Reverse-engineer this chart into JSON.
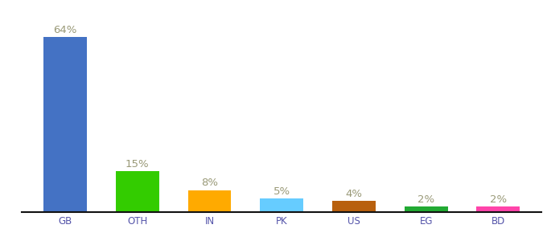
{
  "categories": [
    "GB",
    "OTH",
    "IN",
    "PK",
    "US",
    "EG",
    "BD"
  ],
  "values": [
    64,
    15,
    8,
    5,
    4,
    2,
    2
  ],
  "bar_colors": [
    "#4472c4",
    "#33cc00",
    "#ffaa00",
    "#66ccff",
    "#b8600e",
    "#22aa33",
    "#ff44aa"
  ],
  "labels": [
    "64%",
    "15%",
    "8%",
    "5%",
    "4%",
    "2%",
    "2%"
  ],
  "background_color": "#ffffff",
  "label_color": "#999977",
  "label_fontsize": 9.5,
  "tick_fontsize": 8.5,
  "tick_color": "#5555aa",
  "ylim": [
    0,
    75
  ],
  "bar_width": 0.6,
  "figsize": [
    6.8,
    3.0
  ],
  "dpi": 100
}
